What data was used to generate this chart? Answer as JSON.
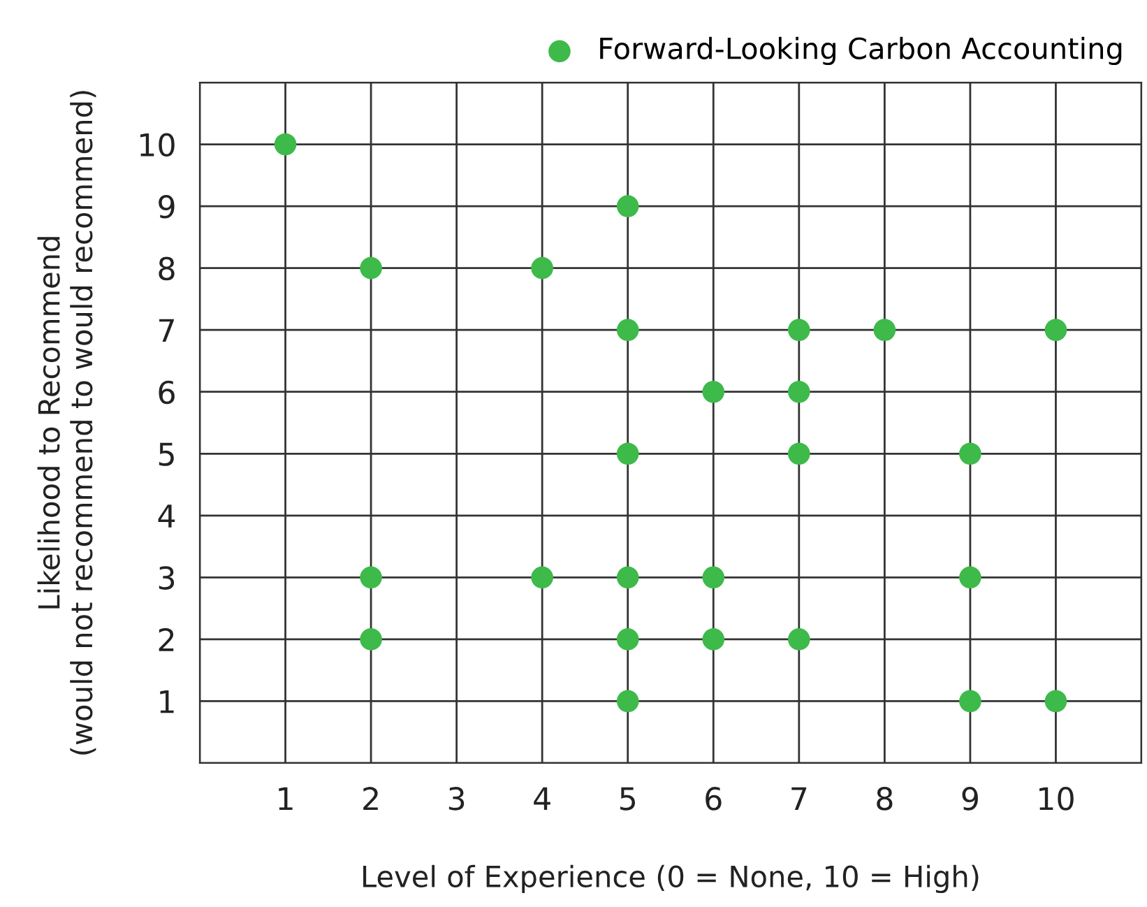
{
  "chart_data": {
    "type": "scatter",
    "xlabel": "Level of Experience (0 = None, 10 = High)",
    "ylabel": "Likelihood to Recommend\n(would not recommend to would recommend)",
    "series": [
      {
        "name": "Forward-Looking Carbon Accounting",
        "color": "#3dba4a",
        "x": [
          1,
          2,
          2,
          2,
          4,
          4,
          5,
          5,
          5,
          5,
          5,
          5,
          6,
          6,
          6,
          7,
          7,
          7,
          7,
          8,
          9,
          9,
          9,
          10,
          10
        ],
        "values": [
          10,
          8,
          3,
          2,
          8,
          3,
          9,
          7,
          5,
          3,
          2,
          1,
          6,
          3,
          2,
          7,
          6,
          5,
          2,
          7,
          5,
          3,
          1,
          7,
          1
        ]
      }
    ],
    "xlim": [
      0,
      11
    ],
    "ylim": [
      0,
      11
    ],
    "xticks": [
      {
        "value": 0,
        "label": null
      },
      1,
      2,
      3,
      4,
      5,
      6,
      7,
      8,
      9,
      10,
      {
        "value": 11,
        "label": null
      }
    ],
    "yticks": [
      {
        "value": 0,
        "label": null
      },
      1,
      2,
      3,
      4,
      5,
      6,
      7,
      8,
      9,
      10,
      {
        "value": 11,
        "label": null
      }
    ],
    "grid": true,
    "legend": "top right",
    "marker": "circle"
  }
}
